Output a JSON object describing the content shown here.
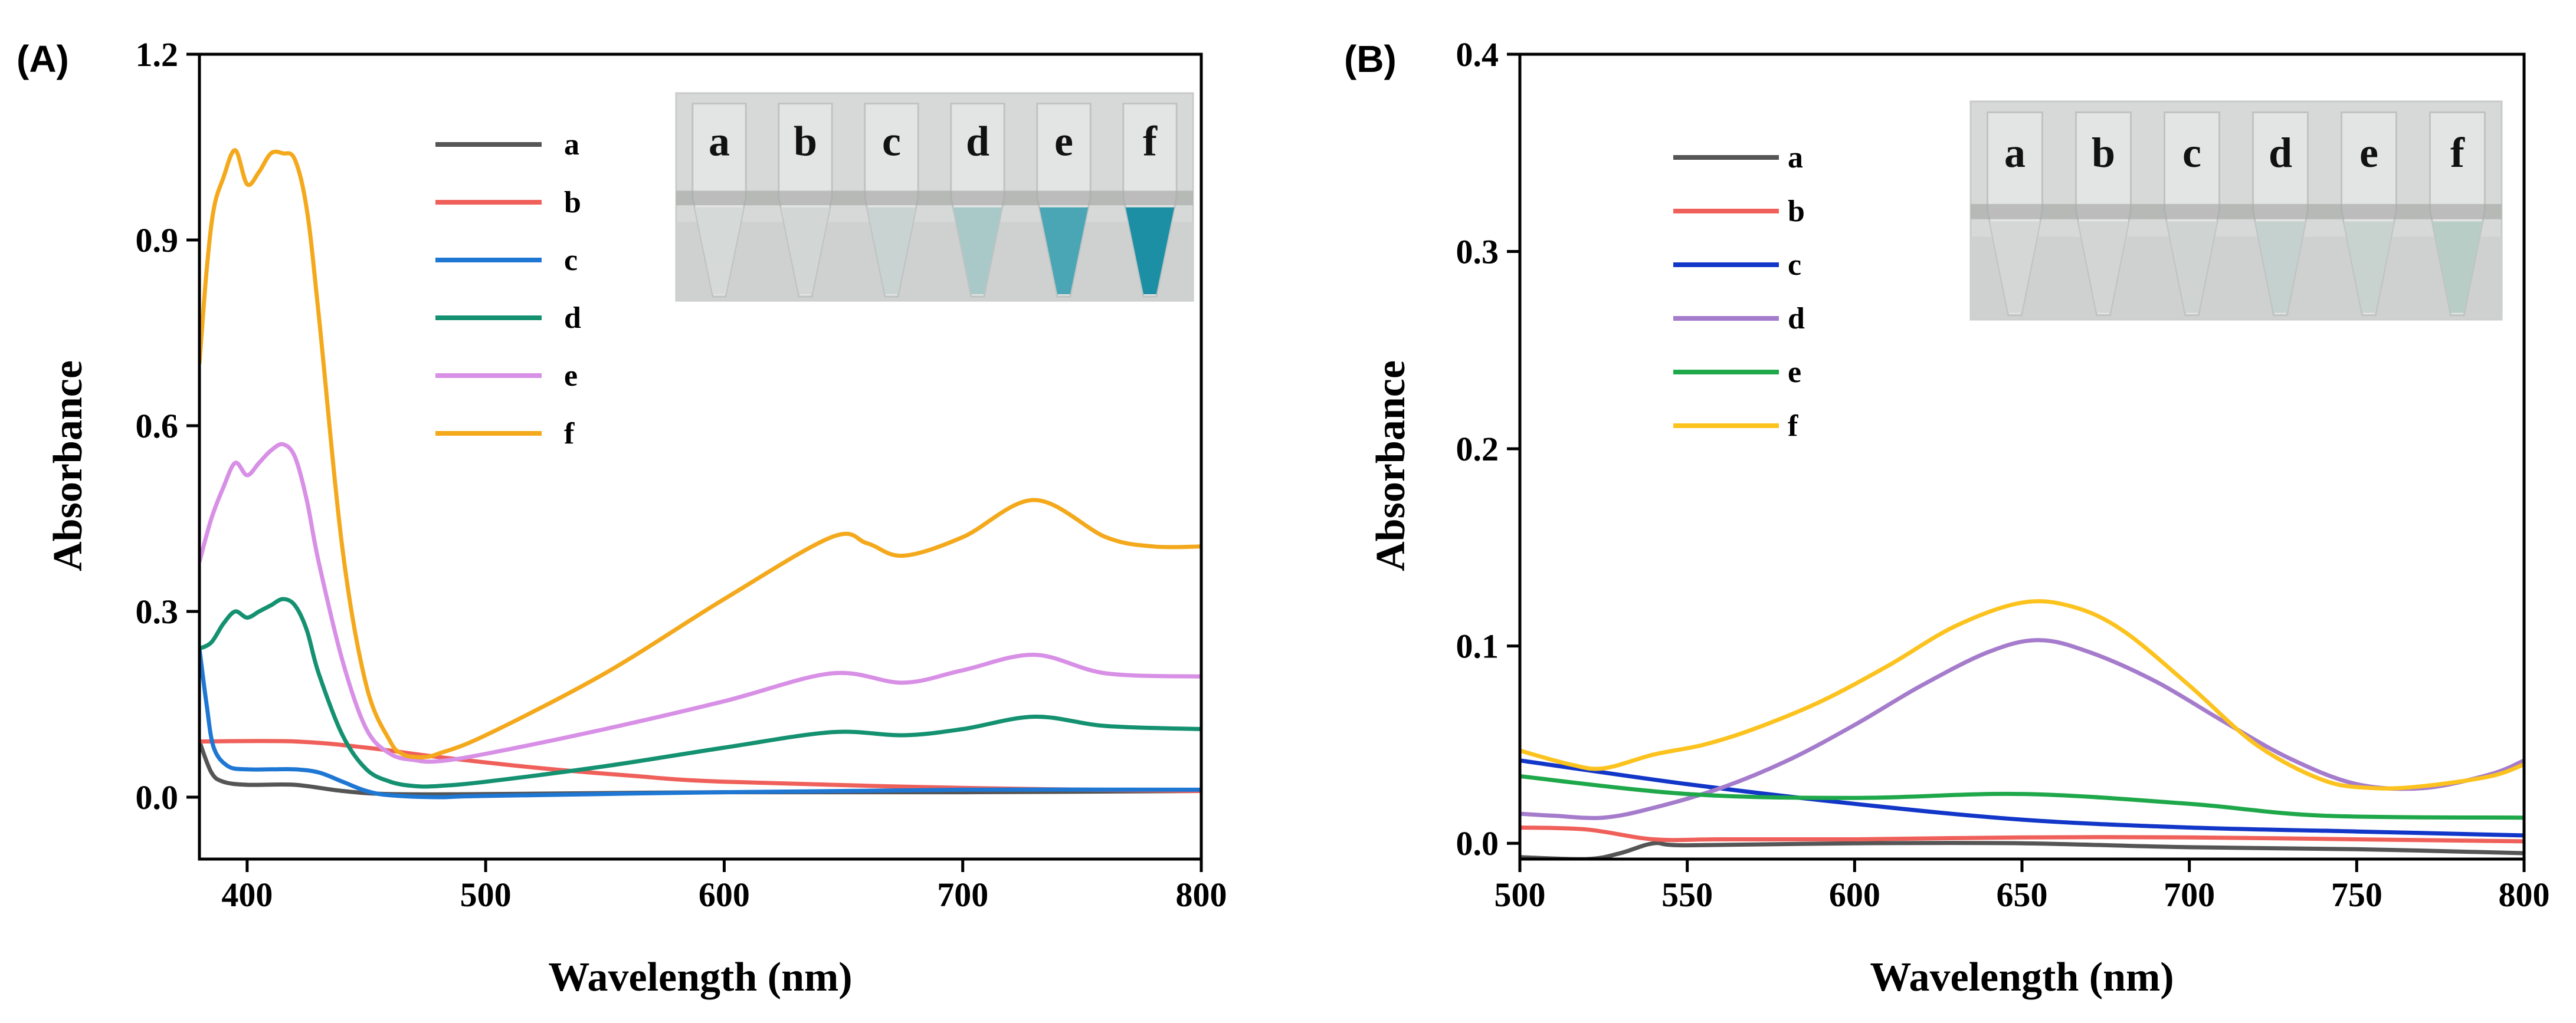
{
  "chart_data": [
    {
      "id": "A",
      "panel_label": "(A)",
      "type": "line",
      "xlabel": "Wavelength (nm)",
      "ylabel": "Absorbance",
      "xlim": [
        380,
        800
      ],
      "ylim": [
        -0.1,
        1.2
      ],
      "xticks": [
        400,
        500,
        600,
        700,
        800
      ],
      "xtick_labels": [
        "400",
        "500",
        "600",
        "700",
        "800"
      ],
      "yticks": [
        0.0,
        0.3,
        0.6,
        0.9,
        1.2
      ],
      "ytick_labels": [
        "0.0",
        "0.3",
        "0.6",
        "0.9",
        "1.2"
      ],
      "legend": "top-left",
      "inset": {
        "description": "photo of tubes",
        "labels": [
          "a",
          "b",
          "c",
          "d",
          "e",
          "f"
        ],
        "tube_colors": [
          "#d5d9d8",
          "#d2d6d5",
          "#c8d3d2",
          "#a9c9c9",
          "#4aa6b4",
          "#1d8fa5"
        ]
      },
      "series": [
        {
          "name": "a",
          "color": "#555555",
          "x": [
            380,
            385,
            390,
            400,
            420,
            440,
            460,
            500,
            600,
            700,
            800
          ],
          "y": [
            0.09,
            0.04,
            0.025,
            0.02,
            0.02,
            0.01,
            0.005,
            0.005,
            0.008,
            0.008,
            0.01
          ]
        },
        {
          "name": "b",
          "color": "#f0605a",
          "x": [
            380,
            420,
            450,
            480,
            520,
            560,
            600,
            700,
            800
          ],
          "y": [
            0.09,
            0.09,
            0.08,
            0.065,
            0.048,
            0.035,
            0.025,
            0.015,
            0.01
          ]
        },
        {
          "name": "c",
          "color": "#1f77d4",
          "x": [
            380,
            383,
            386,
            392,
            400,
            410,
            420,
            430,
            440,
            450,
            460,
            480,
            500,
            600,
            700,
            800
          ],
          "y": [
            0.24,
            0.15,
            0.08,
            0.05,
            0.045,
            0.045,
            0.045,
            0.04,
            0.025,
            0.01,
            0.003,
            0.0,
            0.002,
            0.008,
            0.012,
            0.012
          ]
        },
        {
          "name": "d",
          "color": "#149170",
          "x": [
            380,
            385,
            390,
            395,
            400,
            405,
            410,
            415,
            420,
            425,
            430,
            440,
            450,
            460,
            470,
            480,
            500,
            550,
            600,
            645,
            675,
            700,
            730,
            760,
            800
          ],
          "y": [
            0.24,
            0.25,
            0.28,
            0.3,
            0.29,
            0.3,
            0.31,
            0.32,
            0.31,
            0.27,
            0.2,
            0.1,
            0.045,
            0.025,
            0.018,
            0.018,
            0.025,
            0.05,
            0.08,
            0.105,
            0.1,
            0.11,
            0.13,
            0.115,
            0.11
          ]
        },
        {
          "name": "e",
          "color": "#d88fe6",
          "x": [
            380,
            385,
            390,
            395,
            400,
            405,
            410,
            415,
            420,
            425,
            430,
            440,
            450,
            460,
            470,
            480,
            500,
            550,
            600,
            645,
            675,
            700,
            730,
            760,
            800
          ],
          "y": [
            0.38,
            0.45,
            0.5,
            0.54,
            0.52,
            0.54,
            0.56,
            0.57,
            0.55,
            0.48,
            0.38,
            0.22,
            0.11,
            0.07,
            0.06,
            0.058,
            0.07,
            0.11,
            0.155,
            0.2,
            0.185,
            0.205,
            0.23,
            0.2,
            0.195
          ]
        },
        {
          "name": "f",
          "color": "#f4a91c",
          "x": [
            380,
            383,
            386,
            390,
            395,
            400,
            405,
            410,
            415,
            420,
            425,
            430,
            440,
            450,
            460,
            465,
            470,
            475,
            480,
            500,
            550,
            600,
            645,
            660,
            675,
            700,
            730,
            760,
            780,
            800
          ],
          "y": [
            0.7,
            0.85,
            0.95,
            1.0,
            1.045,
            0.99,
            1.01,
            1.04,
            1.04,
            1.03,
            0.95,
            0.78,
            0.4,
            0.18,
            0.09,
            0.07,
            0.065,
            0.065,
            0.07,
            0.1,
            0.2,
            0.32,
            0.42,
            0.41,
            0.39,
            0.42,
            0.48,
            0.42,
            0.405,
            0.405
          ]
        }
      ]
    },
    {
      "id": "B",
      "panel_label": "(B)",
      "type": "line",
      "xlabel": "Wavelength (nm)",
      "ylabel": "Absorbance",
      "xlim": [
        500,
        800
      ],
      "ylim": [
        -0.008,
        0.4
      ],
      "xticks": [
        500,
        550,
        600,
        650,
        700,
        750,
        800
      ],
      "xtick_labels": [
        "500",
        "550",
        "600",
        "650",
        "700",
        "750",
        "800"
      ],
      "yticks": [
        0.0,
        0.1,
        0.2,
        0.3,
        0.4
      ],
      "ytick_labels": [
        "0.0",
        "0.1",
        "0.2",
        "0.3",
        "0.4"
      ],
      "legend": "top-left",
      "inset": {
        "description": "photo of tubes",
        "labels": [
          "a",
          "b",
          "c",
          "d",
          "e",
          "f"
        ],
        "tube_colors": [
          "#d4d7d6",
          "#d2d5d4",
          "#cfd4d3",
          "#c5d1ce",
          "#c8d3d0",
          "#b9cdc7"
        ]
      },
      "series": [
        {
          "name": "a",
          "color": "#555555",
          "x": [
            500,
            520,
            530,
            540,
            550,
            600,
            650,
            700,
            750,
            800
          ],
          "y": [
            -0.007,
            -0.008,
            -0.005,
            0.0,
            -0.001,
            0.0,
            0.0,
            -0.002,
            -0.003,
            -0.005
          ]
        },
        {
          "name": "b",
          "color": "#f0605a",
          "x": [
            500,
            520,
            540,
            560,
            600,
            650,
            700,
            750,
            800
          ],
          "y": [
            0.008,
            0.007,
            0.002,
            0.002,
            0.002,
            0.003,
            0.003,
            0.002,
            0.001
          ]
        },
        {
          "name": "c",
          "color": "#1236c8",
          "x": [
            500,
            550,
            600,
            650,
            700,
            750,
            800
          ],
          "y": [
            0.042,
            0.03,
            0.02,
            0.012,
            0.008,
            0.006,
            0.004
          ]
        },
        {
          "name": "d",
          "color": "#a57ccc",
          "x": [
            500,
            510,
            525,
            540,
            560,
            580,
            600,
            620,
            640,
            655,
            670,
            690,
            710,
            730,
            750,
            770,
            790,
            800
          ],
          "y": [
            0.015,
            0.014,
            0.013,
            0.018,
            0.028,
            0.042,
            0.06,
            0.08,
            0.097,
            0.103,
            0.097,
            0.082,
            0.062,
            0.043,
            0.03,
            0.028,
            0.035,
            0.042
          ]
        },
        {
          "name": "e",
          "color": "#1ea84a",
          "x": [
            500,
            550,
            600,
            650,
            700,
            740,
            800
          ],
          "y": [
            0.034,
            0.025,
            0.023,
            0.025,
            0.02,
            0.014,
            0.013
          ]
        },
        {
          "name": "f",
          "color": "#fcc21e",
          "x": [
            500,
            515,
            525,
            540,
            555,
            570,
            590,
            610,
            630,
            650,
            665,
            680,
            700,
            720,
            740,
            755,
            770,
            790,
            800
          ],
          "y": [
            0.047,
            0.04,
            0.038,
            0.045,
            0.05,
            0.058,
            0.072,
            0.09,
            0.11,
            0.122,
            0.12,
            0.108,
            0.08,
            0.05,
            0.032,
            0.028,
            0.029,
            0.034,
            0.04
          ]
        }
      ]
    }
  ]
}
